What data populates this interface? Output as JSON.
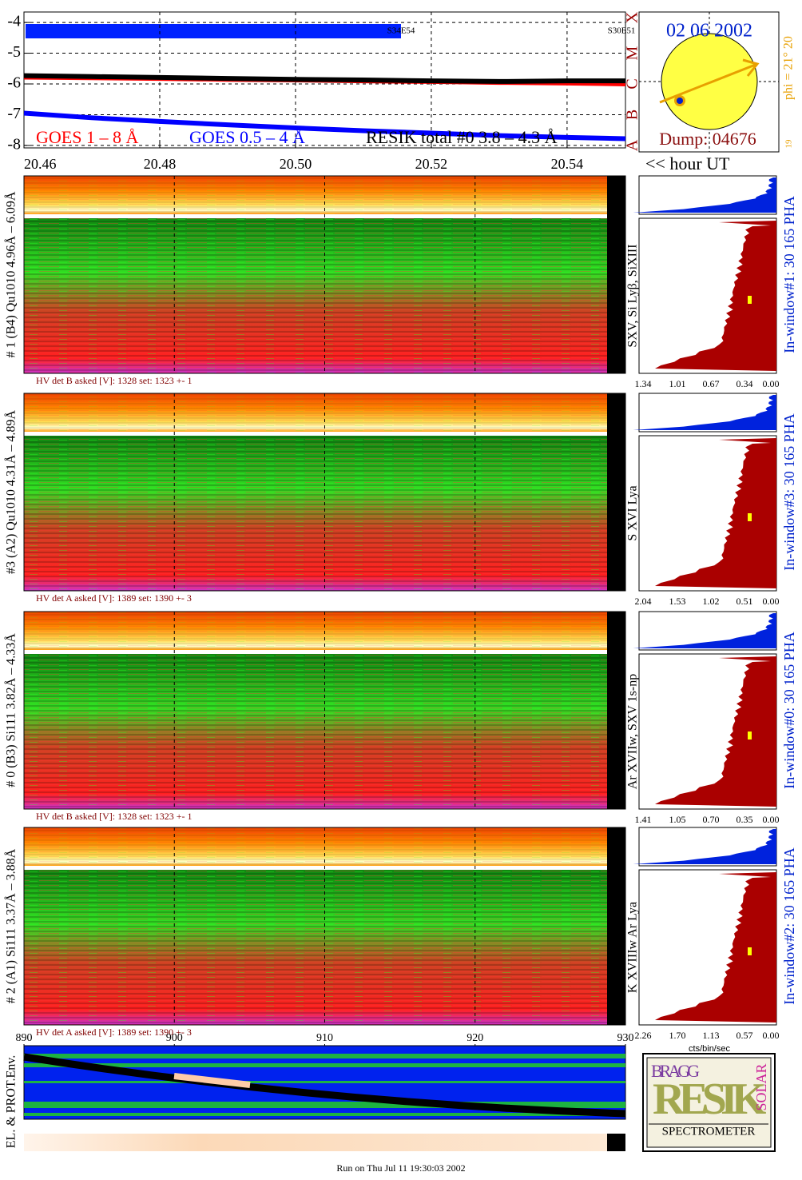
{
  "goes": {
    "type": "line",
    "ylim": [
      -8.08,
      -3.66
    ],
    "yticks": [
      -4,
      -5,
      -6,
      -7,
      -8
    ],
    "xlim": [
      20.46,
      20.5486
    ],
    "xticks": [
      {
        "value": 20.46,
        "label": "20.46"
      },
      {
        "value": 20.48,
        "label": "20.48"
      },
      {
        "value": 20.5,
        "label": "20.50"
      },
      {
        "value": 20.52,
        "label": "20.52"
      },
      {
        "value": 20.54,
        "label": "20.54"
      }
    ],
    "x": [
      20.46,
      20.47,
      20.48,
      20.49,
      20.5,
      20.51,
      20.52,
      20.53,
      20.54,
      20.5486
    ],
    "series": [
      {
        "name": "GOES 1 – 8 Å",
        "color": "#ff0000",
        "values": [
          -5.78,
          -5.8,
          -5.82,
          -5.85,
          -5.87,
          -5.9,
          -5.92,
          -5.95,
          -5.97,
          -6.0
        ]
      },
      {
        "name": "GOES 0.5 – 4 Å",
        "color": "#0000ff",
        "values": [
          -6.95,
          -7.1,
          -7.22,
          -7.33,
          -7.43,
          -7.52,
          -7.6,
          -7.68,
          -7.74,
          -7.78
        ]
      },
      {
        "name": "RESIK total #0  3.8 – 4.3 Å",
        "color": "#000000",
        "values": [
          -5.73,
          -5.76,
          -5.79,
          -5.82,
          -5.85,
          -5.87,
          -5.9,
          -5.92,
          -5.9,
          -5.9
        ]
      }
    ],
    "class_labels": [
      "X",
      "M",
      "C",
      "B",
      "A"
    ],
    "events": [
      "S34E54",
      "S30E51"
    ],
    "x_label": "<< hour UT"
  },
  "sun": {
    "date": "02 06 2002",
    "phi": "phi = 21° 20",
    "corner": "19",
    "dump": "Dump: 04676"
  },
  "detectors": [
    {
      "label": "# 1 (B4) Qu1010 4.96Å – 6.09Å",
      "lines": "SXV, Si Lyβ, SiXIII",
      "window": "In-window#1:   30 165 PHA",
      "hv": "HV det B asked [V]:  1328 set:  1323  +-    1",
      "hist_ticks": [
        "1.34",
        "1.01",
        "0.67",
        "0.34",
        "0.00"
      ]
    },
    {
      "label": "#3 (A2) Qu1010  4.31Å – 4.89Å",
      "lines": "S XVI Lya",
      "window": "In-window#3:   30 165 PHA",
      "hv": "HV det A asked [V]:  1389 set:  1390  +-    3",
      "hist_ticks": [
        "2.04",
        "1.53",
        "1.02",
        "0.51",
        "0.00"
      ]
    },
    {
      "label": "# 0 (B3) Si111  3.82Å – 4.33Å",
      "lines": "Ar XVIIw, SXV 1s-np",
      "window": "In-window#0:   30 165 PHA",
      "hv": "HV det B asked [V]:  1328 set:  1323  +-    1",
      "hist_ticks": [
        "1.41",
        "1.05",
        "0.70",
        "0.35",
        "0.00"
      ]
    },
    {
      "label": "# 2 (A1) Si111  3.37Å – 3.88Å",
      "lines": "K XVIIIw  Ar Lya",
      "window": "In-window#2:   30 165 PHA",
      "hv": "HV det A asked [V]:  1389 set:  1390  +-    3",
      "hist_ticks": [
        "2.26",
        "1.70",
        "1.13",
        "0.57",
        "0.00"
      ]
    }
  ],
  "frames": {
    "xlim": [
      890,
      930
    ],
    "xticks": [
      890,
      900,
      910,
      920,
      930
    ]
  },
  "hist_unit": "cts/bin/sec",
  "env_label": "EL. & PROT.Env.",
  "logo": {
    "top": "BRAGG",
    "main": "RESIK",
    "side": "SOLAR",
    "name": "SPECTROMETER"
  },
  "footer": "Run on Thu Jul 11 19:30:03 2002"
}
